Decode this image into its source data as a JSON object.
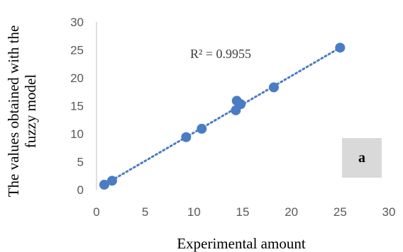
{
  "chart_data": {
    "type": "scatter",
    "xlabel": "Experimental amount",
    "ylabel_lines": [
      "The values obtained with the",
      "fuzzy model"
    ],
    "xlim": [
      0,
      30
    ],
    "ylim": [
      0,
      30
    ],
    "x_ticks": [
      "0",
      "5",
      "10",
      "15",
      "20",
      "25",
      "30"
    ],
    "y_ticks": [
      "0",
      "5",
      "10",
      "15",
      "20",
      "25",
      "30"
    ],
    "grid": false,
    "series": [
      {
        "x": [
          0.8,
          1.6,
          9.2,
          10.8,
          14.3,
          14.4,
          14.8,
          18.2,
          25.0
        ],
        "y": [
          0.9,
          1.6,
          9.4,
          10.9,
          14.2,
          15.9,
          15.3,
          18.3,
          25.4
        ]
      }
    ],
    "trendline": {
      "style": "dotted",
      "from": [
        0.8,
        0.9
      ],
      "to": [
        25.0,
        25.4
      ]
    },
    "annotation": "R² = 0.9955",
    "panel_label": "a",
    "colors": {
      "marker": "#4a7cc4",
      "trendline": "#4a7cc4",
      "axis": "#bfbfbf",
      "panel_box": "#d9d9d9"
    }
  }
}
